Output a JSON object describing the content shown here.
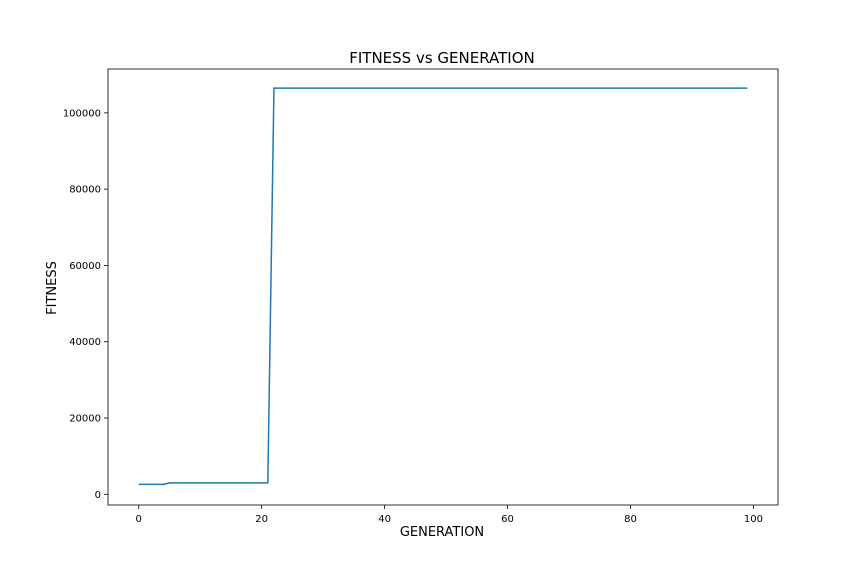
{
  "chart_data": {
    "type": "line",
    "title": "FITNESS vs GENERATION",
    "xlabel": "GENERATION",
    "ylabel": "FITNESS",
    "xlim": [
      -5,
      104
    ],
    "ylim": [
      -2800,
      111500
    ],
    "xticks": [
      0,
      20,
      40,
      60,
      80,
      100
    ],
    "yticks": [
      0,
      20000,
      40000,
      60000,
      80000,
      100000
    ],
    "grid": false,
    "line_color": "#1f77b4",
    "series": [
      {
        "x": [
          0,
          1,
          2,
          3,
          4,
          5,
          6,
          7,
          8,
          9,
          10,
          11,
          12,
          13,
          14,
          15,
          16,
          17,
          18,
          19,
          20,
          21,
          22,
          23,
          24,
          25,
          26,
          27,
          28,
          29,
          30,
          31,
          32,
          33,
          34,
          35,
          36,
          37,
          38,
          39,
          40,
          41,
          42,
          43,
          44,
          45,
          46,
          47,
          48,
          49,
          50,
          51,
          52,
          53,
          54,
          55,
          56,
          57,
          58,
          59,
          60,
          61,
          62,
          63,
          64,
          65,
          66,
          67,
          68,
          69,
          70,
          71,
          72,
          73,
          74,
          75,
          76,
          77,
          78,
          79,
          80,
          81,
          82,
          83,
          84,
          85,
          86,
          87,
          88,
          89,
          90,
          91,
          92,
          93,
          94,
          95,
          96,
          97,
          98,
          99
        ],
        "y": [
          2600,
          2600,
          2600,
          2600,
          2600,
          3000,
          3000,
          3000,
          3000,
          3000,
          3000,
          3000,
          3000,
          3000,
          3000,
          3000,
          3000,
          3000,
          3000,
          3000,
          3000,
          3000,
          106500,
          106500,
          106500,
          106500,
          106500,
          106500,
          106500,
          106500,
          106500,
          106500,
          106500,
          106500,
          106500,
          106500,
          106500,
          106500,
          106500,
          106500,
          106500,
          106500,
          106500,
          106500,
          106500,
          106500,
          106500,
          106500,
          106500,
          106500,
          106500,
          106500,
          106500,
          106500,
          106500,
          106500,
          106500,
          106500,
          106500,
          106500,
          106500,
          106500,
          106500,
          106500,
          106500,
          106500,
          106500,
          106500,
          106500,
          106500,
          106500,
          106500,
          106500,
          106500,
          106500,
          106500,
          106500,
          106500,
          106500,
          106500,
          106500,
          106500,
          106500,
          106500,
          106500,
          106500,
          106500,
          106500,
          106500,
          106500,
          106500,
          106500,
          106500,
          106500,
          106500,
          106500,
          106500,
          106500,
          106500,
          106500
        ]
      }
    ]
  }
}
